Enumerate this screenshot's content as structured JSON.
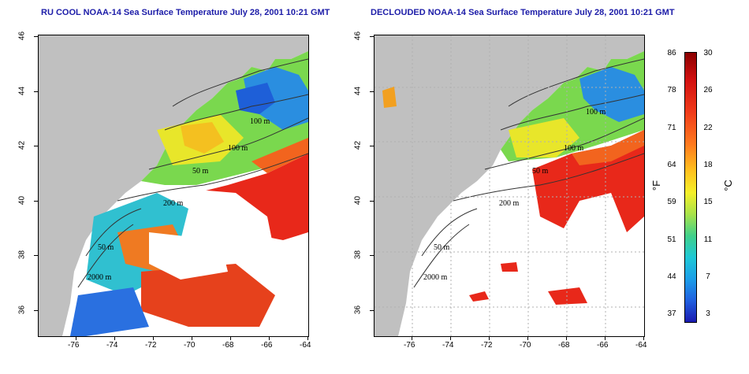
{
  "titles": {
    "left": "RU COOL NOAA-14 Sea Surface Temperature July 28, 2001 10:21 GMT",
    "right": "DECLOUDED NOAA-14 Sea Surface Temperature July 28, 2001 10:21 GMT"
  },
  "axes": {
    "x_ticks": [
      "-76",
      "-74",
      "-72",
      "-70",
      "-68",
      "-66",
      "-64"
    ],
    "y_ticks": [
      "46",
      "44",
      "42",
      "40",
      "38",
      "36"
    ]
  },
  "contour_labels": {
    "left": [
      "100 m",
      "100 m",
      "50 m",
      "200 m",
      "50 m",
      "2000 m"
    ],
    "right": [
      "100 m",
      "100 m",
      "50 m",
      "200 m",
      "50 m",
      "2000 m"
    ]
  },
  "colorbar": {
    "fahrenheit": [
      "86",
      "78",
      "71",
      "64",
      "59",
      "51",
      "44",
      "37"
    ],
    "celsius": [
      "30",
      "26",
      "22",
      "18",
      "15",
      "11",
      "7",
      "3"
    ],
    "unit_f": "°F",
    "unit_c": "°C"
  },
  "colors": {
    "land": "#c0c0c0",
    "cloud": "#ffffff",
    "warm": "#e8281a",
    "cool": "#1e64dc",
    "mid": "#f0e62a"
  }
}
